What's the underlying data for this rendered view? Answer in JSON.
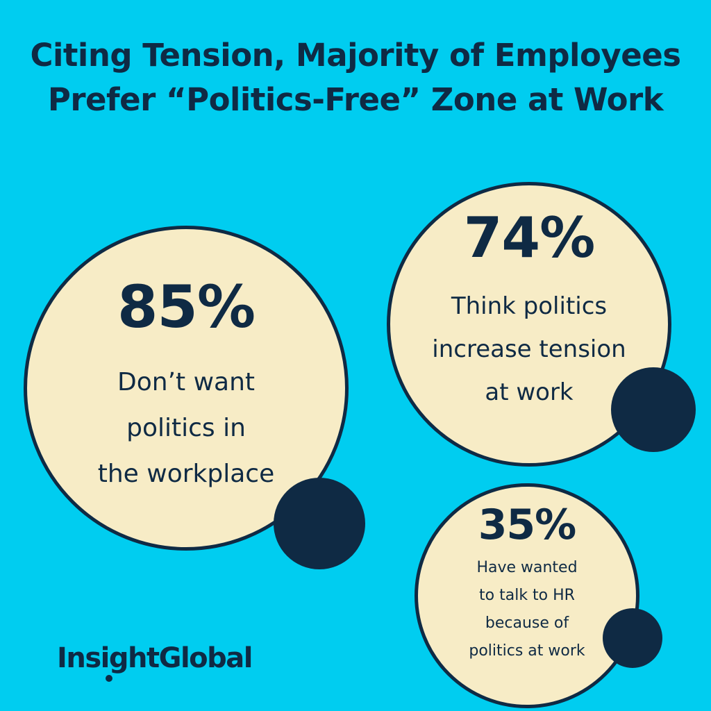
{
  "title": {
    "line1": "Citing Tension, Majority of Employees",
    "line2": "Prefer “Politics-Free” Zone at Work"
  },
  "stats": [
    {
      "value": "85%",
      "lines": [
        "Don’t want",
        "politics in",
        "the workplace"
      ]
    },
    {
      "value": "74%",
      "lines": [
        "Think politics",
        "increase tension",
        "at work"
      ]
    },
    {
      "value": "35%",
      "lines": [
        "Have wanted",
        "to talk to HR",
        "because of",
        "politics at work"
      ]
    }
  ],
  "logo": {
    "text": "InsightGlobal"
  },
  "colors": {
    "background": "#00cdf0",
    "bubble": "#f7ecc6",
    "ink": "#0f2a44"
  }
}
